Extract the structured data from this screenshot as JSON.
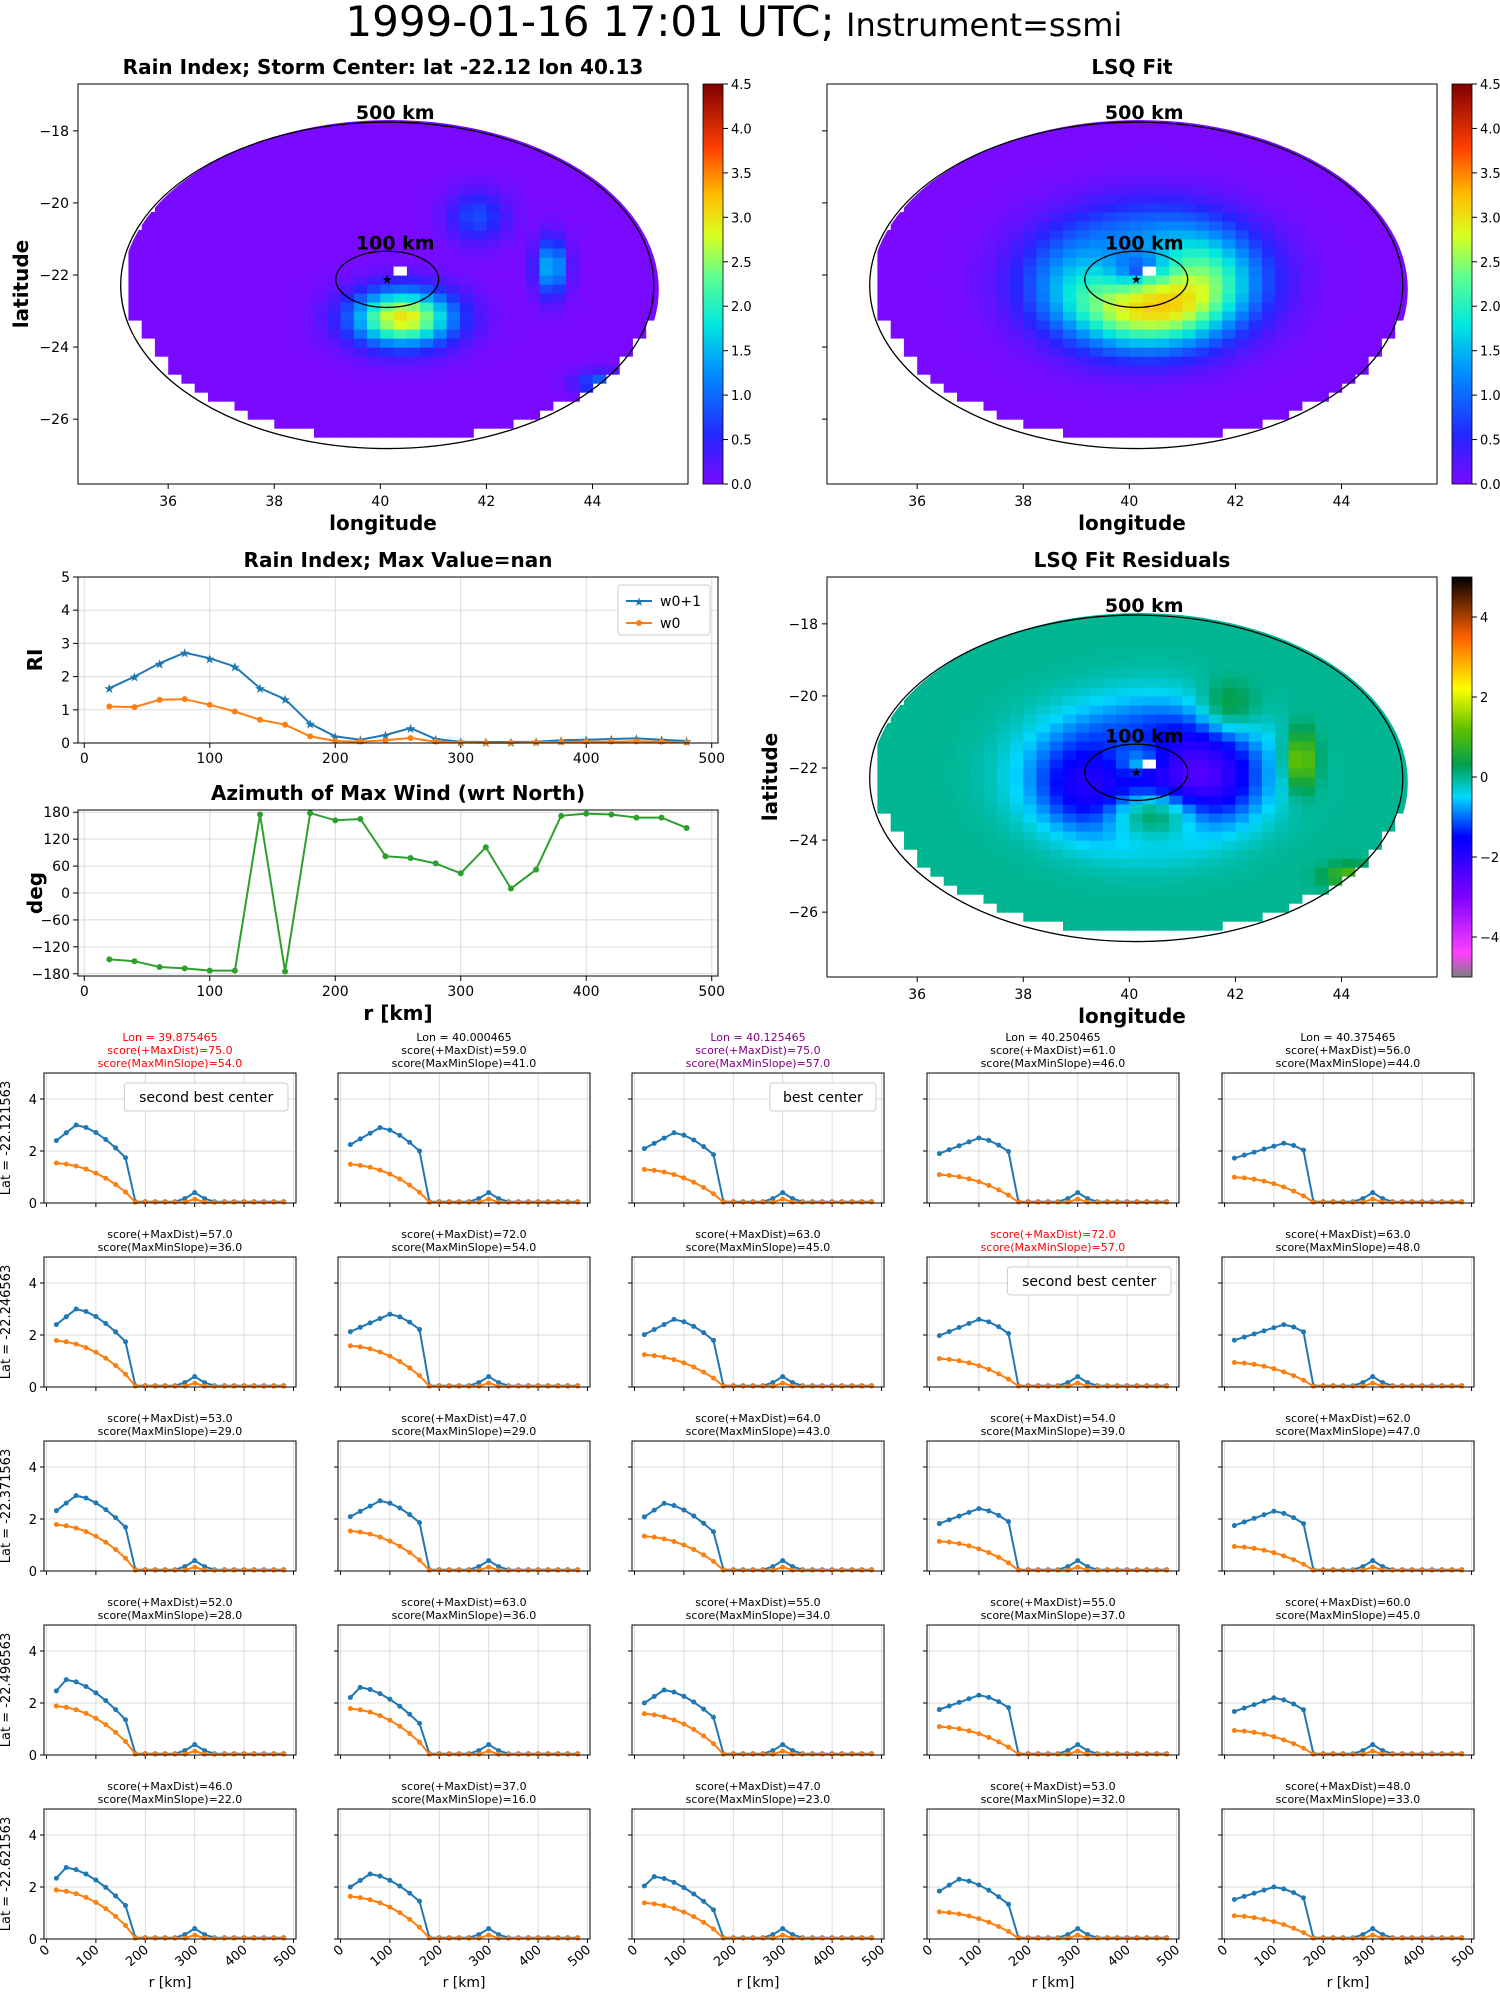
{
  "suptitle": {
    "main": "1999-01-16 17:01 UTC;",
    "instrument": "Instrument=ssmi"
  },
  "maps": [
    {
      "title": "Rain Index; Storm Center: lat -22.12 lon 40.13",
      "xlabel": "longitude",
      "ylabel": "latitude",
      "xticks": [
        36,
        38,
        40,
        42,
        44
      ],
      "yticks": [
        -18,
        -20,
        -22,
        -24,
        -26
      ],
      "xlim": [
        34.3,
        45.8
      ],
      "ylim": [
        -27.8,
        -16.7
      ],
      "rings": [
        "500 km",
        "100 km"
      ],
      "center": {
        "lon": 40.13,
        "lat": -22.12
      },
      "colorbar": {
        "ticks": [
          "0.0",
          "0.5",
          "1.0",
          "1.5",
          "2.0",
          "2.5",
          "3.0",
          "3.5",
          "4.0",
          "4.5"
        ],
        "min": 0,
        "max": 4.5,
        "scheme": "jet"
      }
    },
    {
      "title": "LSQ Fit",
      "xlabel": "longitude",
      "ylabel": "",
      "xticks": [
        36,
        38,
        40,
        42,
        44
      ],
      "yticks": [
        -18,
        -20,
        -22,
        -24,
        -26
      ],
      "xlim": [
        34.3,
        45.8
      ],
      "ylim": [
        -27.8,
        -16.7
      ],
      "rings": [
        "500 km",
        "100 km"
      ],
      "center": {
        "lon": 40.13,
        "lat": -22.12
      },
      "colorbar": {
        "ticks": [
          "0.0",
          "0.5",
          "1.0",
          "1.5",
          "2.0",
          "2.5",
          "3.0",
          "3.5",
          "4.0",
          "4.5"
        ],
        "min": 0,
        "max": 4.5,
        "scheme": "jet"
      }
    },
    {
      "title": "LSQ Fit Residuals",
      "xlabel": "longitude",
      "ylabel": "latitude",
      "xticks": [
        36,
        38,
        40,
        42,
        44
      ],
      "yticks": [
        -18,
        -20,
        -22,
        -24,
        -26
      ],
      "xlim": [
        34.3,
        45.8
      ],
      "ylim": [
        -27.8,
        -16.7
      ],
      "rings": [
        "500 km",
        "100 km"
      ],
      "center": {
        "lon": 40.13,
        "lat": -22.12
      },
      "colorbar": {
        "ticks": [
          "4",
          "2",
          "0",
          "−2",
          "−4"
        ],
        "min": -5,
        "max": 5,
        "scheme": "diverging"
      }
    }
  ],
  "chart_data": [
    {
      "type": "line",
      "title": "Rain Index; Max Value=nan",
      "xlabel": "",
      "ylabel": "RI",
      "xlim": [
        -5,
        505
      ],
      "ylim": [
        0,
        5
      ],
      "xticks": [
        "0",
        "100",
        "200",
        "300",
        "400",
        "500"
      ],
      "yticks": [
        "0",
        "1",
        "2",
        "3",
        "4",
        "5"
      ],
      "legend_position": "top-right",
      "grid": true,
      "x": [
        20,
        40,
        60,
        80,
        100,
        120,
        140,
        160,
        180,
        200,
        220,
        240,
        260,
        280,
        300,
        320,
        340,
        360,
        380,
        400,
        420,
        440,
        460,
        480
      ],
      "series": [
        {
          "name": "w0+1",
          "color": "#1f77b4",
          "marker": "star",
          "values": [
            1.65,
            2.0,
            2.4,
            2.72,
            2.55,
            2.3,
            1.65,
            1.32,
            0.58,
            0.2,
            0.1,
            0.24,
            0.45,
            0.12,
            0.04,
            0.03,
            0.03,
            0.04,
            0.08,
            0.1,
            0.12,
            0.14,
            0.1,
            0.06
          ]
        },
        {
          "name": "w0",
          "color": "#ff7f0e",
          "marker": "dot",
          "values": [
            1.1,
            1.08,
            1.3,
            1.32,
            1.15,
            0.95,
            0.7,
            0.55,
            0.2,
            0.06,
            0.04,
            0.08,
            0.15,
            0.04,
            0.02,
            0.01,
            0.01,
            0.02,
            0.03,
            0.04,
            0.04,
            0.05,
            0.04,
            0.02
          ]
        }
      ]
    },
    {
      "type": "line",
      "title": "Azimuth of Max Wind (wrt North)",
      "xlabel": "r [km]",
      "ylabel": "deg",
      "xlim": [
        -5,
        505
      ],
      "ylim": [
        -185,
        185
      ],
      "xticks": [
        "0",
        "100",
        "200",
        "300",
        "400",
        "500"
      ],
      "yticks": [
        "180",
        "120",
        "60",
        "0",
        "−60",
        "−120",
        "−180"
      ],
      "grid": true,
      "x": [
        20,
        40,
        60,
        80,
        100,
        120,
        140,
        160,
        180,
        200,
        220,
        240,
        260,
        280,
        300,
        320,
        340,
        360,
        380,
        400,
        420,
        440,
        460,
        480
      ],
      "series": [
        {
          "color": "#2ca02c",
          "marker": "dot",
          "values": [
            -148,
            -152,
            -165,
            -168,
            -173,
            -173,
            175,
            -175,
            178,
            162,
            165,
            82,
            78,
            66,
            44,
            102,
            10,
            52,
            172,
            177,
            175,
            168,
            168,
            145
          ]
        }
      ]
    },
    {
      "type": "line-grid",
      "rows": 5,
      "cols": 5,
      "xlim": [
        -5,
        505
      ],
      "ylim": [
        0,
        5
      ],
      "xticks": [
        "0",
        "100",
        "200",
        "300",
        "400",
        "500"
      ],
      "yticks": [
        "0",
        "2",
        "4"
      ],
      "xlabel": "r [km]",
      "row_labels": [
        "Lat = -22.121563",
        "Lat = -22.246563",
        "Lat = -22.371563",
        "Lat = -22.496563",
        "Lat = -22.621563"
      ],
      "panels": [
        {
          "lines": [
            "Lon = 39.875465",
            "score(+MaxDist)=75.0",
            "score(MaxMinSlope)=54.0"
          ],
          "color": "red",
          "note": "second best center",
          "b": 3.0,
          "p": 60,
          "o": 1.55
        },
        {
          "lines": [
            "Lon = 40.000465",
            "score(+MaxDist)=59.0",
            "score(MaxMinSlope)=41.0"
          ],
          "color": "black",
          "note": "",
          "b": 2.9,
          "p": 80,
          "o": 1.5
        },
        {
          "lines": [
            "Lon = 40.125465",
            "score(+MaxDist)=75.0",
            "score(MaxMinSlope)=57.0"
          ],
          "color": "purple",
          "note": "best center",
          "b": 2.7,
          "p": 80,
          "o": 1.3
        },
        {
          "lines": [
            "Lon = 40.250465",
            "score(+MaxDist)=61.0",
            "score(MaxMinSlope)=46.0"
          ],
          "color": "black",
          "note": "",
          "b": 2.5,
          "p": 100,
          "o": 1.1
        },
        {
          "lines": [
            "Lon = 40.375465",
            "score(+MaxDist)=56.0",
            "score(MaxMinSlope)=44.0"
          ],
          "color": "black",
          "note": "",
          "b": 2.3,
          "p": 120,
          "o": 1.0
        },
        {
          "lines": [
            "score(+MaxDist)=57.0",
            "score(MaxMinSlope)=36.0"
          ],
          "color": "black",
          "note": "",
          "b": 3.0,
          "p": 60,
          "o": 1.8
        },
        {
          "lines": [
            "score(+MaxDist)=72.0",
            "score(MaxMinSlope)=54.0"
          ],
          "color": "black",
          "note": "",
          "b": 2.8,
          "p": 100,
          "o": 1.6
        },
        {
          "lines": [
            "score(+MaxDist)=63.0",
            "score(MaxMinSlope)=45.0"
          ],
          "color": "black",
          "note": "",
          "b": 2.6,
          "p": 80,
          "o": 1.25
        },
        {
          "lines": [
            "score(+MaxDist)=72.0",
            "score(MaxMinSlope)=57.0"
          ],
          "color": "red",
          "note": "second best center",
          "b": 2.6,
          "p": 100,
          "o": 1.1
        },
        {
          "lines": [
            "score(+MaxDist)=63.0",
            "score(MaxMinSlope)=48.0"
          ],
          "color": "black",
          "note": "",
          "b": 2.4,
          "p": 120,
          "o": 0.95
        },
        {
          "lines": [
            "score(+MaxDist)=53.0",
            "score(MaxMinSlope)=29.0"
          ],
          "color": "black",
          "note": "",
          "b": 2.9,
          "p": 60,
          "o": 1.8
        },
        {
          "lines": [
            "score(+MaxDist)=47.0",
            "score(MaxMinSlope)=29.0"
          ],
          "color": "black",
          "note": "",
          "b": 2.7,
          "p": 80,
          "o": 1.55
        },
        {
          "lines": [
            "score(+MaxDist)=64.0",
            "score(MaxMinSlope)=43.0"
          ],
          "color": "black",
          "note": "",
          "b": 2.6,
          "p": 60,
          "o": 1.35
        },
        {
          "lines": [
            "score(+MaxDist)=54.0",
            "score(MaxMinSlope)=39.0"
          ],
          "color": "black",
          "note": "",
          "b": 2.4,
          "p": 100,
          "o": 1.15
        },
        {
          "lines": [
            "score(+MaxDist)=62.0",
            "score(MaxMinSlope)=47.0"
          ],
          "color": "black",
          "note": "",
          "b": 2.3,
          "p": 100,
          "o": 0.95
        },
        {
          "lines": [
            "score(+MaxDist)=52.0",
            "score(MaxMinSlope)=28.0"
          ],
          "color": "black",
          "note": "",
          "b": 2.9,
          "p": 40,
          "o": 1.9
        },
        {
          "lines": [
            "score(+MaxDist)=63.0",
            "score(MaxMinSlope)=36.0"
          ],
          "color": "black",
          "note": "",
          "b": 2.6,
          "p": 40,
          "o": 1.8
        },
        {
          "lines": [
            "score(+MaxDist)=55.0",
            "score(MaxMinSlope)=34.0"
          ],
          "color": "black",
          "note": "",
          "b": 2.5,
          "p": 60,
          "o": 1.6
        },
        {
          "lines": [
            "score(+MaxDist)=55.0",
            "score(MaxMinSlope)=37.0"
          ],
          "color": "black",
          "note": "",
          "b": 2.3,
          "p": 100,
          "o": 1.1
        },
        {
          "lines": [
            "score(+MaxDist)=60.0",
            "score(MaxMinSlope)=45.0"
          ],
          "color": "black",
          "note": "",
          "b": 2.2,
          "p": 100,
          "o": 0.95
        },
        {
          "lines": [
            "score(+MaxDist)=46.0",
            "score(MaxMinSlope)=22.0"
          ],
          "color": "black",
          "note": "",
          "b": 2.75,
          "p": 40,
          "o": 1.9
        },
        {
          "lines": [
            "score(+MaxDist)=37.0",
            "score(MaxMinSlope)=16.0"
          ],
          "color": "black",
          "note": "",
          "b": 2.5,
          "p": 60,
          "o": 1.65
        },
        {
          "lines": [
            "score(+MaxDist)=47.0",
            "score(MaxMinSlope)=23.0"
          ],
          "color": "black",
          "note": "",
          "b": 2.4,
          "p": 40,
          "o": 1.4
        },
        {
          "lines": [
            "score(+MaxDist)=53.0",
            "score(MaxMinSlope)=32.0"
          ],
          "color": "black",
          "note": "",
          "b": 2.3,
          "p": 60,
          "o": 1.05
        },
        {
          "lines": [
            "score(+MaxDist)=48.0",
            "score(MaxMinSlope)=33.0"
          ],
          "color": "black",
          "note": "",
          "b": 2.0,
          "p": 100,
          "o": 0.9
        }
      ]
    }
  ]
}
